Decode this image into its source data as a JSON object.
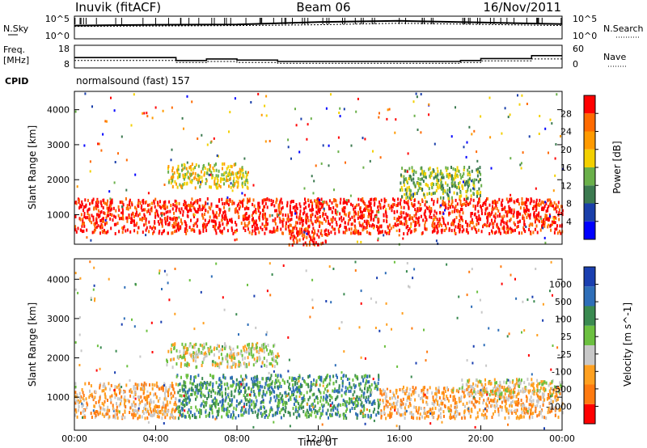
{
  "header": {
    "site": "Inuvik (fitACF)",
    "beam": "Beam 06",
    "date": "16/Nov/2011"
  },
  "noise_panel": {
    "left_label": "N.Sky",
    "right_label": "N.Search",
    "left_ticks": [
      "10^5",
      "10^0"
    ],
    "right_ticks": [
      "10^5",
      "10^0"
    ]
  },
  "freq_panel": {
    "left_label_line1": "Freq.",
    "left_label_line2": "[MHz]",
    "right_label": "Nave",
    "left_ticks": [
      "18",
      "8"
    ],
    "right_ticks": [
      "60",
      "0"
    ]
  },
  "cpid": {
    "label": "CPID",
    "value": "normalsound (fast) 157"
  },
  "colors": {
    "power": [
      "#0000ff",
      "#1a3faa",
      "#3c7a50",
      "#6ab04a",
      "#f3d000",
      "#ff9a00",
      "#ff6a00",
      "#ff0000"
    ],
    "velocity": [
      "#1a3fb0",
      "#2e6eb8",
      "#3a8a50",
      "#6cc040",
      "#c8c8c8",
      "#ffa020",
      "#ff7a10",
      "#ff0000"
    ]
  },
  "chart_data": [
    {
      "type": "line",
      "title": "",
      "ylabel": "N.Sky",
      "ylim": [
        "10^0",
        "10^5"
      ],
      "x": [
        "00:00",
        "04:00",
        "08:00",
        "12:00",
        "16:00",
        "20:00",
        "00:00"
      ],
      "series": [
        {
          "name": "N.Sky",
          "values": [
            3.0,
            3.2,
            3.3,
            3.9,
            4.2,
            3.8,
            3.4
          ]
        },
        {
          "name": "N.Search",
          "values": [
            2.8,
            2.9,
            3.0,
            3.2,
            3.6,
            3.3,
            3.0
          ]
        }
      ]
    },
    {
      "type": "line",
      "title": "",
      "ylabel": "Freq. [MHz]",
      "ylim": [
        8,
        18
      ],
      "x": [
        "00:00",
        "04:00",
        "05:00",
        "06:30",
        "08:00",
        "10:00",
        "14:30",
        "19:00",
        "20:00",
        "22:30",
        "00:00"
      ],
      "series": [
        {
          "name": "Freq.",
          "values": [
            12.5,
            12.5,
            11.0,
            11.8,
            11.2,
            10.5,
            10.5,
            11.0,
            12.0,
            13.5,
            13.5
          ]
        },
        {
          "name": "Nave",
          "values": [
            11.0,
            11.0,
            10.0,
            10.5,
            10.0,
            9.6,
            9.6,
            10.0,
            10.8,
            11.8,
            11.8
          ]
        }
      ]
    },
    {
      "type": "heatmap",
      "title": "",
      "ylabel": "Slant Range [km]",
      "colorbar_label": "Power [dB]",
      "colorbar_ticks": [
        "28",
        "24",
        "20",
        "16",
        "12",
        "8",
        "4"
      ],
      "y_ticks": [
        "4000",
        "3000",
        "2000",
        "1000"
      ],
      "xlim": [
        0,
        24
      ],
      "ylim": [
        180,
        4500
      ],
      "bands": [
        {
          "x0": 0.0,
          "x1": 24.0,
          "y0": 500,
          "y1": 1500,
          "level": 7
        },
        {
          "x0": 4.5,
          "x1": 8.5,
          "y0": 1800,
          "y1": 2500,
          "level": 4
        },
        {
          "x0": 16.0,
          "x1": 20.0,
          "y0": 1500,
          "y1": 2400,
          "level": 3
        },
        {
          "x0": 10.5,
          "x1": 12.5,
          "y0": 180,
          "y1": 600,
          "level": 7
        }
      ]
    },
    {
      "type": "heatmap",
      "title": "",
      "ylabel": "Slant Range [km]",
      "colorbar_label": "Velocity [m s^-1]",
      "colorbar_ticks": [
        "1000",
        "500",
        "100",
        "25",
        "-25",
        "-100",
        "-500",
        "-1000"
      ],
      "y_ticks": [
        "4000",
        "3000",
        "2000",
        "1000"
      ],
      "xlabel": "Time UT",
      "x_ticks": [
        "00:00",
        "04:00",
        "08:00",
        "12:00",
        "16:00",
        "20:00",
        "00:00"
      ],
      "xlim": [
        0,
        24
      ],
      "ylim": [
        180,
        4500
      ],
      "bands": [
        {
          "x0": 0.0,
          "x1": 5.0,
          "y0": 500,
          "y1": 1400,
          "level": 5
        },
        {
          "x0": 5.0,
          "x1": 15.0,
          "y0": 500,
          "y1": 1600,
          "level": 2
        },
        {
          "x0": 15.0,
          "x1": 24.0,
          "y0": 500,
          "y1": 1300,
          "level": 5
        },
        {
          "x0": 4.5,
          "x1": 10.0,
          "y0": 1800,
          "y1": 2400,
          "level": 4
        },
        {
          "x0": 19.0,
          "x1": 24.0,
          "y0": 1100,
          "y1": 1500,
          "level": 4
        }
      ]
    }
  ]
}
